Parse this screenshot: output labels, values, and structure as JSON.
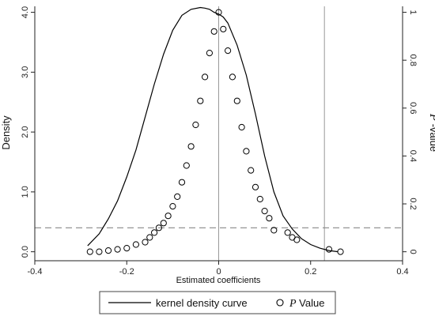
{
  "chart_data": {
    "type": "line+scatter",
    "xlabel": "Estimated coefficients",
    "ylabel_left": "Density",
    "ylabel_right": {
      "italic": "P",
      "rest": " -value"
    },
    "xlim": [
      -0.4,
      0.4
    ],
    "ylim_left": [
      -0.15,
      4.1
    ],
    "ylim_right": [
      -0.0375,
      1.025
    ],
    "x_ticks": [
      "-0.4",
      "-0.2",
      "0",
      "0.2",
      "0.4"
    ],
    "y_left_ticks": [
      "0.0",
      "1.0",
      "2.0",
      "3.0",
      "4.0"
    ],
    "y_right_ticks": [
      "0",
      "0.2",
      "0.4",
      "0.6",
      "0.8",
      "1"
    ],
    "reference_lines": [
      {
        "orientation": "vertical",
        "x": 0,
        "style": "solid",
        "color": "#999999"
      },
      {
        "orientation": "vertical",
        "x": 0.23,
        "style": "solid",
        "color": "#999999"
      },
      {
        "orientation": "horizontal",
        "axis": "right",
        "y": 0.1,
        "style": "dashed",
        "color": "#888888"
      }
    ],
    "series": [
      {
        "name": "kernel density curve",
        "kind": "line",
        "axis": "left",
        "x": [
          -0.285,
          -0.26,
          -0.24,
          -0.22,
          -0.2,
          -0.18,
          -0.16,
          -0.14,
          -0.12,
          -0.1,
          -0.08,
          -0.06,
          -0.04,
          -0.03,
          -0.02,
          -0.01,
          0,
          0.01,
          0.02,
          0.04,
          0.06,
          0.08,
          0.1,
          0.12,
          0.14,
          0.16,
          0.18,
          0.2,
          0.22,
          0.24,
          0.26
        ],
        "y": [
          0.1,
          0.3,
          0.55,
          0.85,
          1.25,
          1.7,
          2.25,
          2.8,
          3.3,
          3.7,
          3.95,
          4.05,
          4.08,
          4.07,
          4.05,
          4.0,
          3.97,
          3.92,
          3.82,
          3.45,
          2.95,
          2.3,
          1.6,
          1.0,
          0.6,
          0.38,
          0.22,
          0.12,
          0.06,
          0.02,
          0.0
        ]
      },
      {
        "name": "P Value",
        "legend_italic": "P",
        "legend_rest": " Value",
        "kind": "scatter",
        "axis": "right",
        "marker": "hollow-circle",
        "points": [
          [
            -0.28,
            0.0
          ],
          [
            -0.26,
            0.0
          ],
          [
            -0.24,
            0.005
          ],
          [
            -0.22,
            0.01
          ],
          [
            -0.2,
            0.015
          ],
          [
            -0.18,
            0.03
          ],
          [
            -0.16,
            0.04
          ],
          [
            -0.15,
            0.06
          ],
          [
            -0.14,
            0.08
          ],
          [
            -0.13,
            0.1
          ],
          [
            -0.12,
            0.12
          ],
          [
            -0.11,
            0.15
          ],
          [
            -0.1,
            0.19
          ],
          [
            -0.09,
            0.23
          ],
          [
            -0.08,
            0.29
          ],
          [
            -0.07,
            0.36
          ],
          [
            -0.06,
            0.44
          ],
          [
            -0.05,
            0.53
          ],
          [
            -0.04,
            0.63
          ],
          [
            -0.03,
            0.73
          ],
          [
            -0.02,
            0.83
          ],
          [
            -0.01,
            0.92
          ],
          [
            0.0,
            1.0
          ],
          [
            0.01,
            0.93
          ],
          [
            0.02,
            0.84
          ],
          [
            0.03,
            0.73
          ],
          [
            0.04,
            0.63
          ],
          [
            0.05,
            0.52
          ],
          [
            0.06,
            0.42
          ],
          [
            0.07,
            0.34
          ],
          [
            0.08,
            0.27
          ],
          [
            0.09,
            0.22
          ],
          [
            0.1,
            0.17
          ],
          [
            0.11,
            0.14
          ],
          [
            0.12,
            0.09
          ],
          [
            0.15,
            0.08
          ],
          [
            0.16,
            0.06
          ],
          [
            0.17,
            0.05
          ],
          [
            0.24,
            0.01
          ],
          [
            0.265,
            0.0
          ]
        ]
      }
    ],
    "legend": {
      "placement": "bottom-center",
      "framed": true
    }
  }
}
